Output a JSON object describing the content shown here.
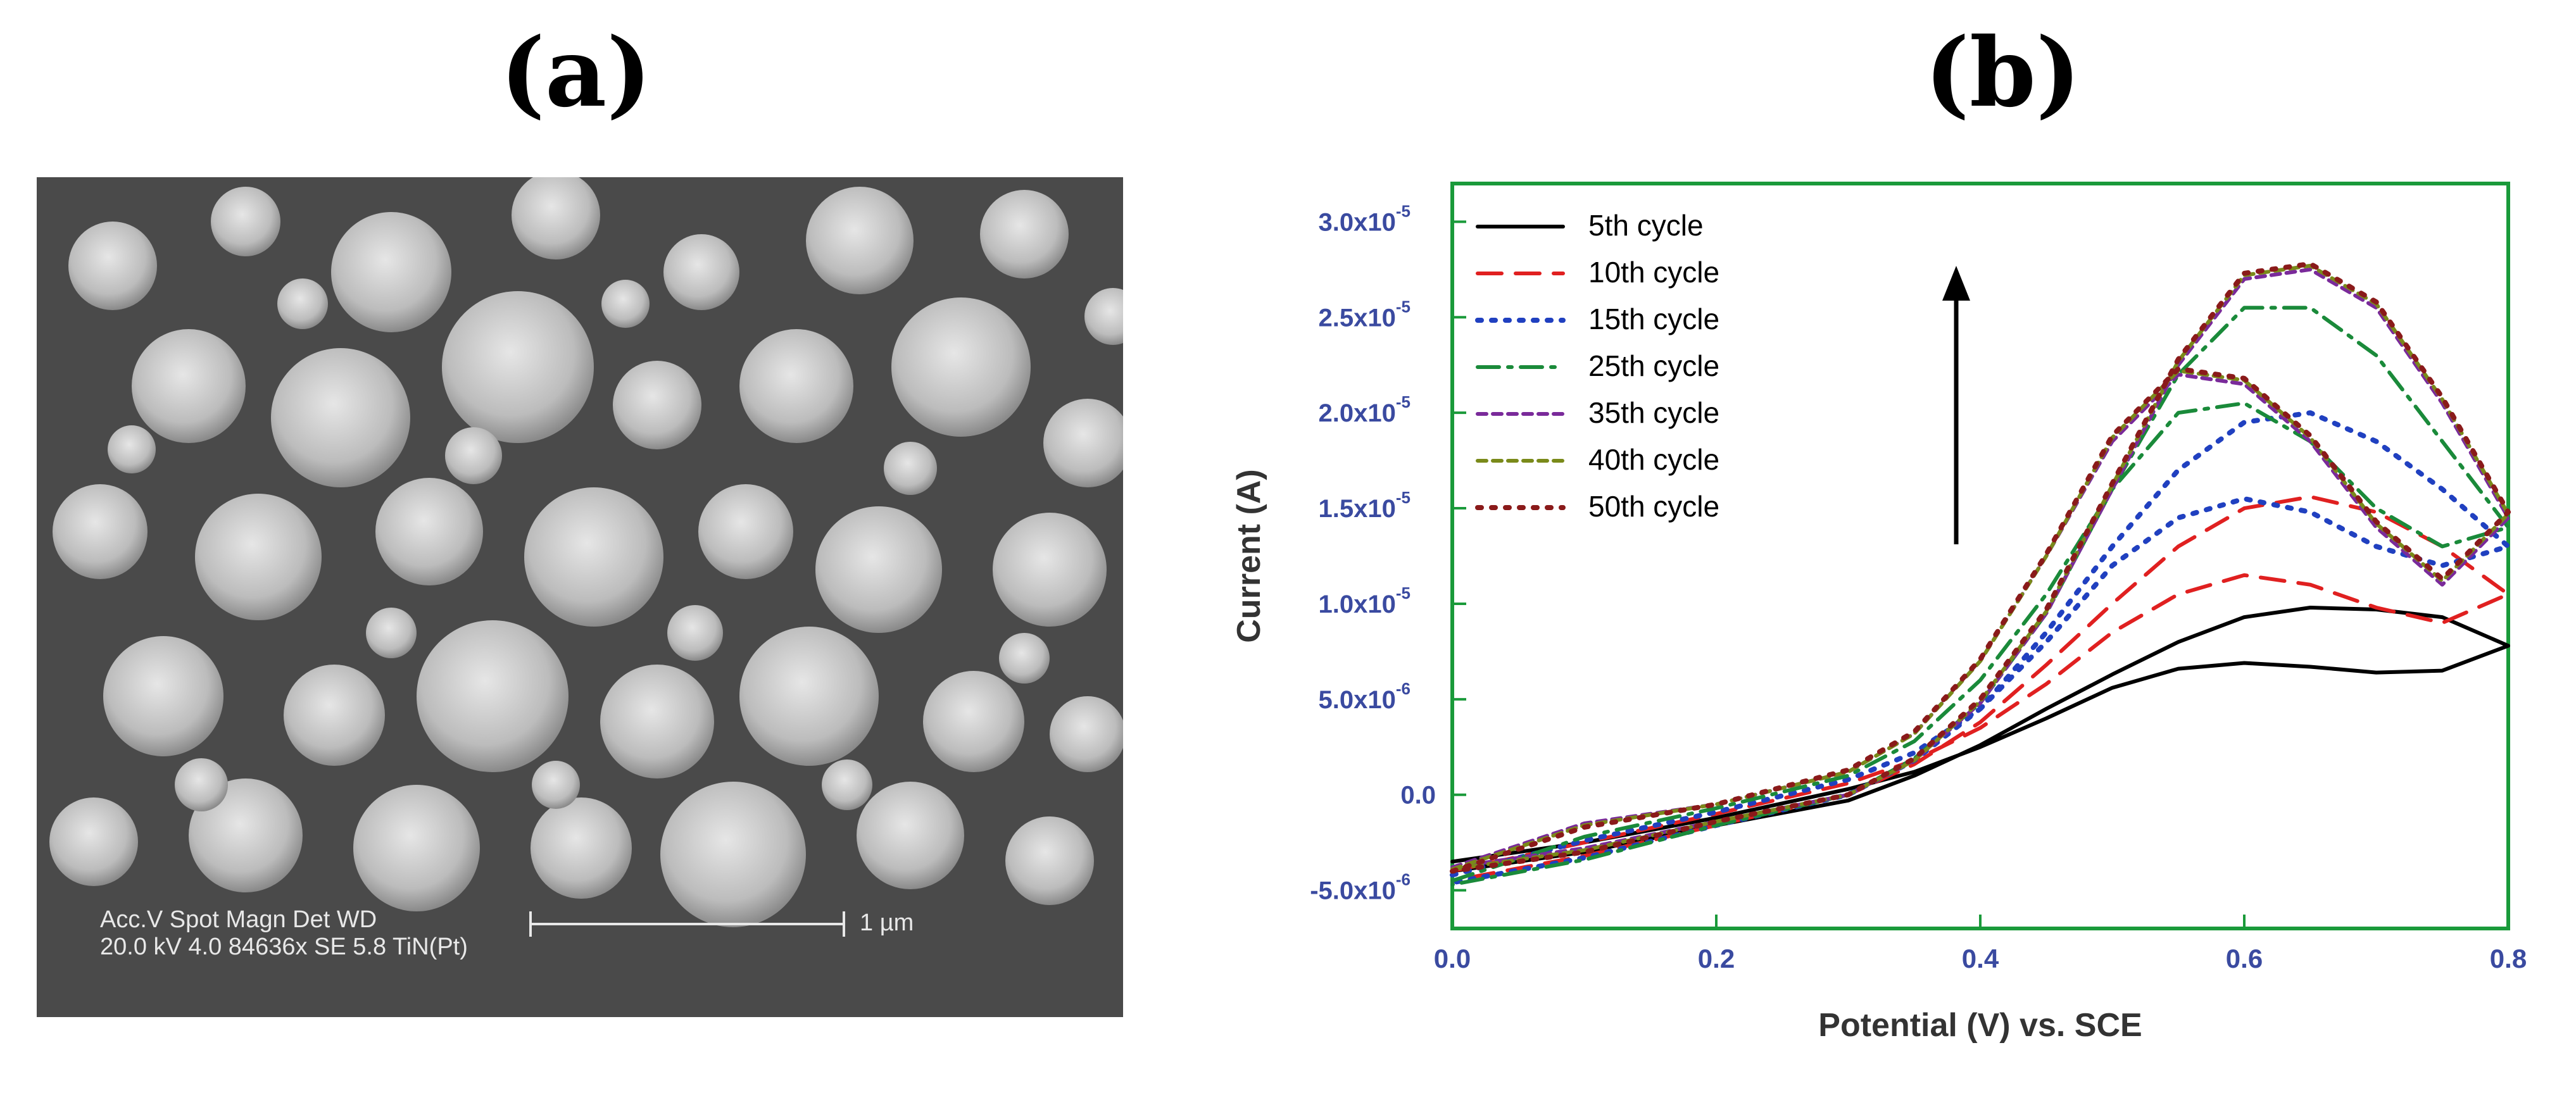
{
  "panels": {
    "a_label": "(a)",
    "b_label": "(b)"
  },
  "sem": {
    "info_row1": "Acc.V  Spot Magn    Det  WD",
    "info_row2": "20.0 kV 4.0   84636x   SE   5.8   TiN(Pt)",
    "scale_label": "1 µm",
    "background_color": "#4a4a4a",
    "particle_color": "#c8c8c8"
  },
  "chart_data": {
    "type": "line",
    "xlabel": "Potential (V) vs. SCE",
    "ylabel": "Current (A)",
    "xlim": [
      0.0,
      0.8
    ],
    "ylim": [
      -7e-06,
      3.2e-05
    ],
    "x_ticks": [
      "0.0",
      "0.2",
      "0.4",
      "0.6",
      "0.8"
    ],
    "y_ticks": [
      {
        "value": -5e-06,
        "label": "-5.0x10",
        "exp": "-6"
      },
      {
        "value": 0,
        "label": "0.0",
        "exp": ""
      },
      {
        "value": 5e-06,
        "label": "5.0x10",
        "exp": "-6"
      },
      {
        "value": 1e-05,
        "label": "1.0x10",
        "exp": "-5"
      },
      {
        "value": 1.5e-05,
        "label": "1.5x10",
        "exp": "-5"
      },
      {
        "value": 2e-05,
        "label": "2.0x10",
        "exp": "-5"
      },
      {
        "value": 2.5e-05,
        "label": "2.5x10",
        "exp": "-5"
      },
      {
        "value": 3e-05,
        "label": "3.0x10",
        "exp": "-5"
      }
    ],
    "grid": false,
    "legend_position": "top-left",
    "axis_frame_color": "#1a9a3a",
    "tick_label_color": "#3a4aa0",
    "arrow": "upward arrow indicating increasing current with cycle number",
    "series": [
      {
        "name": "5th cycle",
        "color": "#000000",
        "dash": "solid",
        "forward": {
          "x": [
            0.0,
            0.1,
            0.2,
            0.3,
            0.35,
            0.4,
            0.45,
            0.5,
            0.55,
            0.6,
            0.65,
            0.7,
            0.75,
            0.8
          ],
          "y": [
            -3.5e-06,
            -2.5e-06,
            -1.2e-06,
            3e-07,
            1.2e-06,
            2.5e-06,
            4e-06,
            5.6e-06,
            6.6e-06,
            6.9e-06,
            6.7e-06,
            6.4e-06,
            6.5e-06,
            7.8e-06
          ]
        },
        "reverse": {
          "x": [
            0.8,
            0.75,
            0.7,
            0.65,
            0.6,
            0.55,
            0.5,
            0.45,
            0.4,
            0.35,
            0.3,
            0.2,
            0.1,
            0.0
          ],
          "y": [
            7.8e-06,
            9.3e-06,
            9.7e-06,
            9.8e-06,
            9.3e-06,
            8e-06,
            6.3e-06,
            4.5e-06,
            2.6e-06,
            1e-06,
            -3e-07,
            -1.6e-06,
            -3e-06,
            -4e-06
          ]
        }
      },
      {
        "name": "10th cycle",
        "color": "#e02020",
        "dash": "long-dash",
        "forward": {
          "x": [
            0.0,
            0.1,
            0.2,
            0.3,
            0.35,
            0.4,
            0.45,
            0.5,
            0.55,
            0.6,
            0.65,
            0.7,
            0.75,
            0.8
          ],
          "y": [
            -4e-06,
            -2.5e-06,
            -1e-06,
            6e-07,
            1.8e-06,
            3.5e-06,
            5.8e-06,
            8.5e-06,
            1.05e-05,
            1.15e-05,
            1.1e-05,
            9.8e-06,
            9e-06,
            1.05e-05
          ]
        },
        "reverse": {
          "x": [
            0.8,
            0.75,
            0.7,
            0.65,
            0.6,
            0.55,
            0.5,
            0.45,
            0.4,
            0.35,
            0.3,
            0.2,
            0.1,
            0.0
          ],
          "y": [
            1.05e-05,
            1.3e-05,
            1.48e-05,
            1.56e-05,
            1.5e-05,
            1.3e-05,
            1e-05,
            6.8e-06,
            3.8e-06,
            1.6e-06,
            0,
            -1.6e-06,
            -3.2e-06,
            -4.5e-06
          ]
        }
      },
      {
        "name": "15th cycle",
        "color": "#2040c0",
        "dash": "dotted",
        "forward": {
          "x": [
            0.0,
            0.1,
            0.2,
            0.3,
            0.35,
            0.4,
            0.45,
            0.5,
            0.55,
            0.6,
            0.65,
            0.7,
            0.75,
            0.8
          ],
          "y": [
            -4.2e-06,
            -2.4e-06,
            -9e-07,
            8e-07,
            2.2e-06,
            4.5e-06,
            8e-06,
            1.2e-05,
            1.45e-05,
            1.55e-05,
            1.48e-05,
            1.3e-05,
            1.2e-05,
            1.3e-05
          ]
        },
        "reverse": {
          "x": [
            0.8,
            0.75,
            0.7,
            0.65,
            0.6,
            0.55,
            0.5,
            0.45,
            0.4,
            0.35,
            0.3,
            0.2,
            0.1,
            0.0
          ],
          "y": [
            1.3e-05,
            1.6e-05,
            1.85e-05,
            2e-05,
            1.95e-05,
            1.7e-05,
            1.3e-05,
            8.5e-06,
            4.5e-06,
            1.8e-06,
            0,
            -1.6e-06,
            -3.3e-06,
            -4.6e-06
          ]
        }
      },
      {
        "name": "25th cycle",
        "color": "#1a8a3a",
        "dash": "dash-dot",
        "forward": {
          "x": [
            0.0,
            0.1,
            0.2,
            0.3,
            0.35,
            0.4,
            0.45,
            0.5,
            0.55,
            0.6,
            0.65,
            0.7,
            0.75,
            0.8
          ],
          "y": [
            -4.5e-06,
            -2.2e-06,
            -7e-07,
            1e-06,
            2.8e-06,
            6e-06,
            1.05e-05,
            1.6e-05,
            2e-05,
            2.05e-05,
            1.85e-05,
            1.5e-05,
            1.3e-05,
            1.4e-05
          ]
        },
        "reverse": {
          "x": [
            0.8,
            0.75,
            0.7,
            0.65,
            0.6,
            0.55,
            0.5,
            0.45,
            0.4,
            0.35,
            0.3,
            0.2,
            0.1,
            0.0
          ],
          "y": [
            1.4e-05,
            1.85e-05,
            2.3e-05,
            2.55e-05,
            2.55e-05,
            2.2e-05,
            1.6e-05,
            9.5e-06,
            4.8e-06,
            1.9e-06,
            0,
            -1.6e-06,
            -3.4e-06,
            -4.7e-06
          ]
        }
      },
      {
        "name": "35th cycle",
        "color": "#7a2a9a",
        "dash": "short-dash",
        "forward": {
          "x": [
            0.0,
            0.1,
            0.2,
            0.3,
            0.35,
            0.4,
            0.45,
            0.5,
            0.55,
            0.6,
            0.65,
            0.7,
            0.75,
            0.8
          ],
          "y": [
            -3.8e-06,
            -1.5e-06,
            -5e-07,
            1.2e-06,
            3.2e-06,
            7e-06,
            1.25e-05,
            1.85e-05,
            2.2e-05,
            2.15e-05,
            1.85e-05,
            1.4e-05,
            1.1e-05,
            1.45e-05
          ]
        },
        "reverse": {
          "x": [
            0.8,
            0.75,
            0.7,
            0.65,
            0.6,
            0.55,
            0.5,
            0.45,
            0.4,
            0.35,
            0.3,
            0.2,
            0.1,
            0.0
          ],
          "y": [
            1.45e-05,
            2.05e-05,
            2.55e-05,
            2.75e-05,
            2.7e-05,
            2.25e-05,
            1.6e-05,
            9.5e-06,
            4.8e-06,
            1.8e-06,
            0,
            -1.4e-06,
            -2.8e-06,
            -3.8e-06
          ]
        }
      },
      {
        "name": "40th cycle",
        "color": "#7a8a1a",
        "dash": "short-dash",
        "forward": {
          "x": [
            0.0,
            0.1,
            0.2,
            0.3,
            0.35,
            0.4,
            0.45,
            0.5,
            0.55,
            0.6,
            0.65,
            0.7,
            0.75,
            0.8
          ],
          "y": [
            -3.9e-06,
            -1.6e-06,
            -5e-07,
            1.2e-06,
            3.2e-06,
            7e-06,
            1.25e-05,
            1.87e-05,
            2.22e-05,
            2.17e-05,
            1.87e-05,
            1.42e-05,
            1.12e-05,
            1.47e-05
          ]
        },
        "reverse": {
          "x": [
            0.8,
            0.75,
            0.7,
            0.65,
            0.6,
            0.55,
            0.5,
            0.45,
            0.4,
            0.35,
            0.3,
            0.2,
            0.1,
            0.0
          ],
          "y": [
            1.47e-05,
            2.07e-05,
            2.57e-05,
            2.77e-05,
            2.72e-05,
            2.27e-05,
            1.62e-05,
            9.6e-06,
            4.9e-06,
            1.8e-06,
            0,
            -1.4e-06,
            -2.9e-06,
            -3.9e-06
          ]
        }
      },
      {
        "name": "50th cycle",
        "color": "#8a1a1a",
        "dash": "dotted",
        "forward": {
          "x": [
            0.0,
            0.1,
            0.2,
            0.3,
            0.35,
            0.4,
            0.45,
            0.5,
            0.55,
            0.6,
            0.65,
            0.7,
            0.75,
            0.8
          ],
          "y": [
            -4e-06,
            -1.7e-06,
            -5e-07,
            1.3e-06,
            3.3e-06,
            7.1e-06,
            1.26e-05,
            1.88e-05,
            2.23e-05,
            2.18e-05,
            1.88e-05,
            1.43e-05,
            1.13e-05,
            1.48e-05
          ]
        },
        "reverse": {
          "x": [
            0.8,
            0.75,
            0.7,
            0.65,
            0.6,
            0.55,
            0.5,
            0.45,
            0.4,
            0.35,
            0.3,
            0.2,
            0.1,
            0.0
          ],
          "y": [
            1.48e-05,
            2.08e-05,
            2.58e-05,
            2.78e-05,
            2.73e-05,
            2.28e-05,
            1.63e-05,
            9.7e-06,
            5e-06,
            1.9e-06,
            0,
            -1.4e-06,
            -3e-06,
            -4e-06
          ]
        }
      }
    ]
  }
}
